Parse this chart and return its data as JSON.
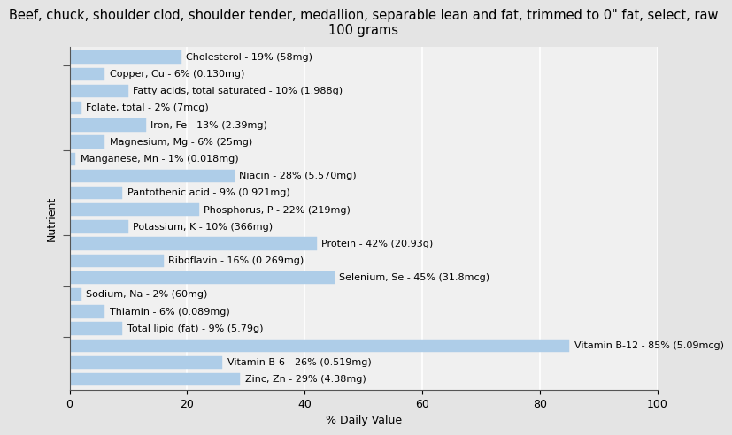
{
  "title": "Beef, chuck, shoulder clod, shoulder tender, medallion, separable lean and fat, trimmed to 0\" fat, select, raw\n100 grams",
  "xlabel": "% Daily Value",
  "ylabel": "Nutrient",
  "nutrients": [
    "Cholesterol - 19% (58mg)",
    "Copper, Cu - 6% (0.130mg)",
    "Fatty acids, total saturated - 10% (1.988g)",
    "Folate, total - 2% (7mcg)",
    "Iron, Fe - 13% (2.39mg)",
    "Magnesium, Mg - 6% (25mg)",
    "Manganese, Mn - 1% (0.018mg)",
    "Niacin - 28% (5.570mg)",
    "Pantothenic acid - 9% (0.921mg)",
    "Phosphorus, P - 22% (219mg)",
    "Potassium, K - 10% (366mg)",
    "Protein - 42% (20.93g)",
    "Riboflavin - 16% (0.269mg)",
    "Selenium, Se - 45% (31.8mcg)",
    "Sodium, Na - 2% (60mg)",
    "Thiamin - 6% (0.089mg)",
    "Total lipid (fat) - 9% (5.79g)",
    "Vitamin B-12 - 85% (5.09mcg)",
    "Vitamin B-6 - 26% (0.519mg)",
    "Zinc, Zn - 29% (4.38mg)"
  ],
  "values": [
    19,
    6,
    10,
    2,
    13,
    6,
    1,
    28,
    9,
    22,
    10,
    42,
    16,
    45,
    2,
    6,
    9,
    85,
    26,
    29
  ],
  "bar_color": "#aecde8",
  "bar_edge_color": "#aecde8",
  "background_color": "#e4e4e4",
  "plot_background_color": "#f0f0f0",
  "xlim": [
    0,
    100
  ],
  "xticks": [
    0,
    20,
    40,
    60,
    80,
    100
  ],
  "grid_color": "#ffffff",
  "title_fontsize": 10.5,
  "axis_label_fontsize": 9,
  "tick_fontsize": 9,
  "bar_label_fontsize": 8
}
